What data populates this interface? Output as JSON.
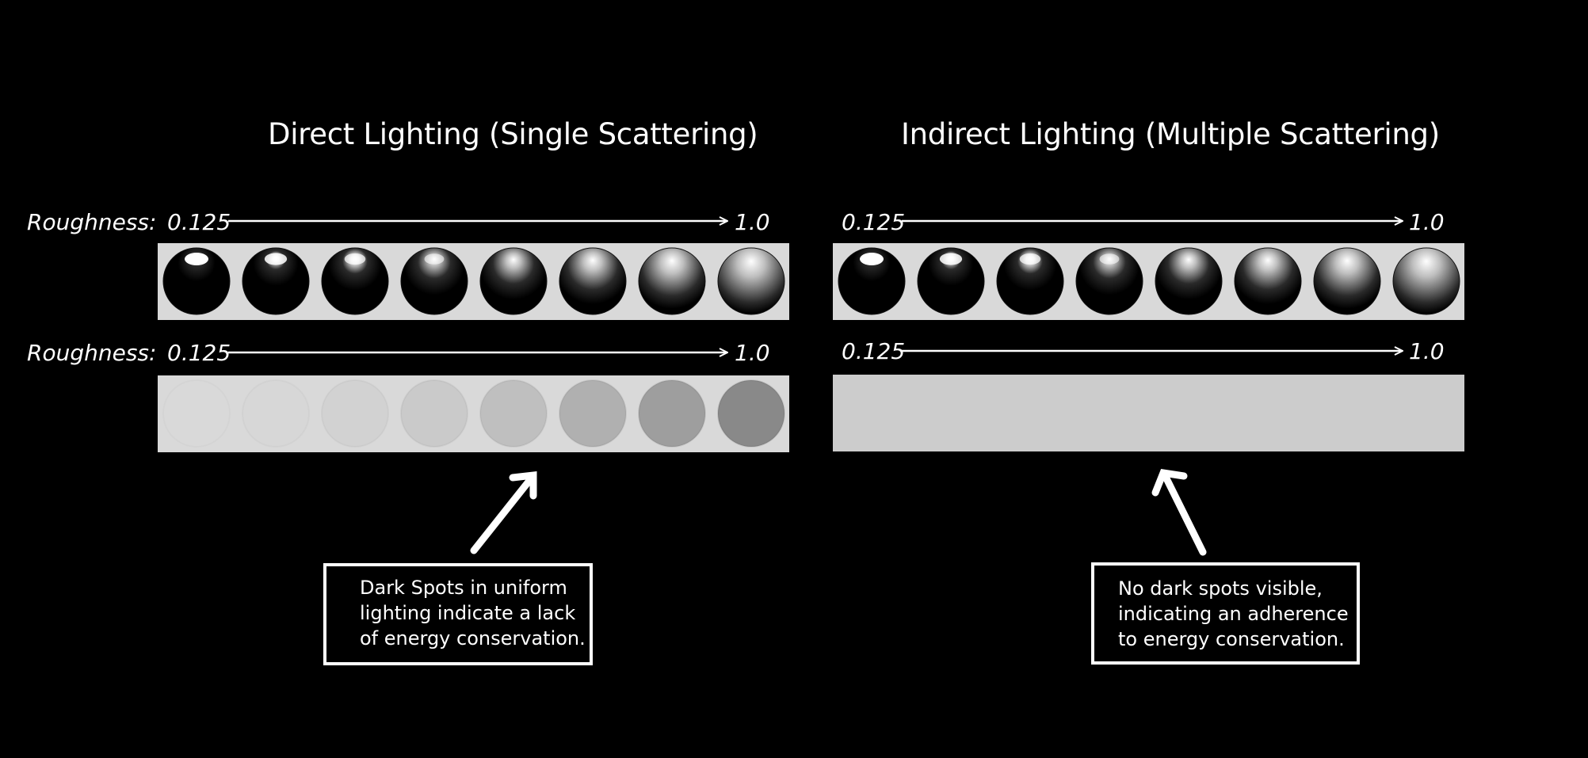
{
  "left": {
    "title": "Direct Lighting (Single Scattering)",
    "row_label": "Roughness:",
    "range_start": "0.125",
    "range_end": "1.0",
    "callout_lines": [
      "Dark Spots in uniform",
      "lighting indicate a lack",
      "of energy conservation."
    ]
  },
  "right": {
    "title": "Indirect Lighting (Multiple Scattering)",
    "range_start": "0.125",
    "range_end": "1.0",
    "callout_lines": [
      "No dark spots visible,",
      "indicating an adherence",
      "to energy conservation."
    ]
  },
  "colors": {
    "background": "#000000",
    "strip": "#d9d9d9",
    "flat_strip": "#cccccc",
    "text": "#ffffff"
  }
}
